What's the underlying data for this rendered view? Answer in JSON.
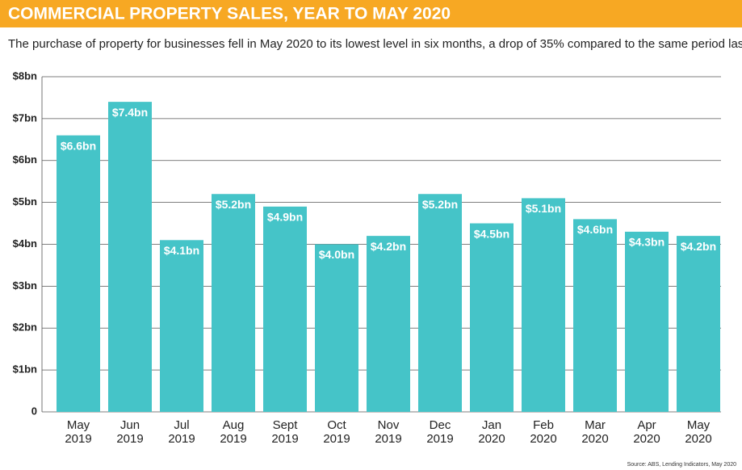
{
  "chart_data": {
    "type": "bar",
    "title": "COMMERCIAL PROPERTY SALES, YEAR TO MAY 2020",
    "subtitle": "The purchase of property for businesses fell in May 2020 to its lowest level in six months, a drop of 35% compared to the same period last year",
    "source": "Source: ABS, Lending Indicators, May 2020",
    "categories": [
      "May 2019",
      "Jun 2019",
      "Jul 2019",
      "Aug 2019",
      "Sept 2019",
      "Oct 2019",
      "Nov 2019",
      "Dec 2019",
      "Jan 2020",
      "Feb 2020",
      "Mar 2020",
      "Apr 2020",
      "May 2020"
    ],
    "values": [
      6.6,
      7.4,
      4.1,
      5.2,
      4.9,
      4.0,
      4.2,
      5.2,
      4.5,
      5.1,
      4.6,
      4.3,
      4.2
    ],
    "value_labels": [
      "$6.6bn",
      "$7.4bn",
      "$4.1bn",
      "$5.2bn",
      "$4.9bn",
      "$4.0bn",
      "$4.2bn",
      "$5.2bn",
      "$4.5bn",
      "$5.1bn",
      "$4.6bn",
      "$4.3bn",
      "$4.2bn"
    ],
    "color": "#45c4c8",
    "ylim": [
      0,
      8
    ],
    "yticks": [
      0,
      {
        "value": 1,
        "label": "$1bn"
      },
      {
        "value": 2,
        "label": "$2bn"
      },
      {
        "value": 3,
        "label": "$3bn"
      },
      {
        "value": 4,
        "label": "$4bn"
      },
      {
        "value": 5,
        "label": "$5bn"
      },
      {
        "value": 6,
        "label": "$6bn"
      },
      {
        "value": 7,
        "label": "$7bn"
      },
      {
        "value": 8,
        "label": "$8bn"
      }
    ],
    "grid": true
  }
}
